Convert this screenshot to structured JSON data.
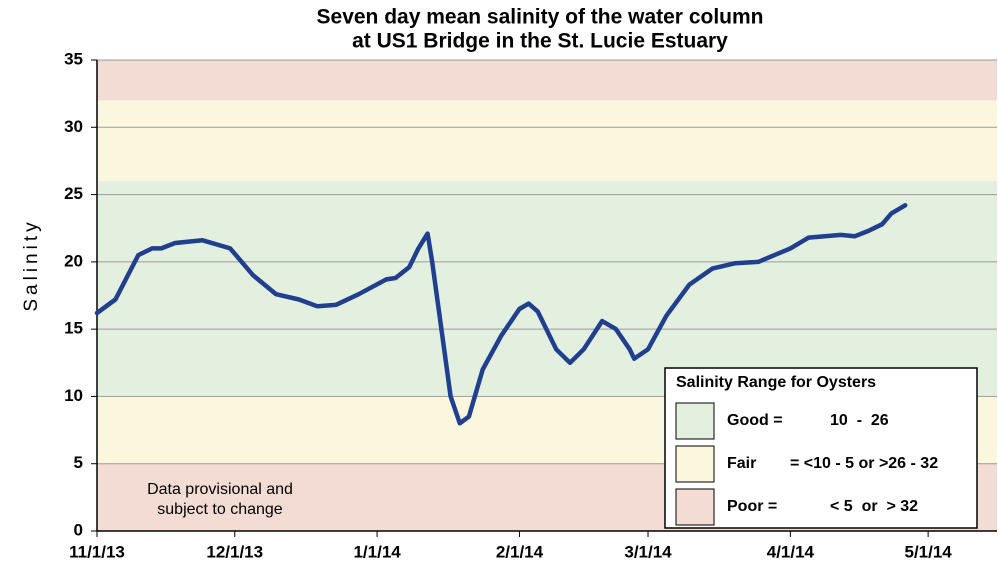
{
  "chart_data": {
    "type": "line",
    "title": [
      "Seven day mean salinity of the water column",
      "at US1 Bridge in the St. Lucie Estuary"
    ],
    "y_label": "Salinity",
    "annotation": [
      "Data provisional and",
      "subject to change"
    ],
    "xlim": [
      "2013-11-01",
      "2014-05-16"
    ],
    "xticks": [
      {
        "value": "2013-11-01",
        "label": "11/1/13"
      },
      {
        "value": "2013-12-01",
        "label": "12/1/13"
      },
      {
        "value": "2014-01-01",
        "label": "1/1/14"
      },
      {
        "value": "2014-02-01",
        "label": "2/1/14"
      },
      {
        "value": "2014-03-01",
        "label": "3/1/14"
      },
      {
        "value": "2014-04-01",
        "label": "4/1/14"
      },
      {
        "value": "2014-05-01",
        "label": "5/1/14"
      }
    ],
    "ylim": [
      0,
      35
    ],
    "yticks": [
      0,
      5,
      10,
      15,
      20,
      25,
      30,
      35
    ],
    "grid": true,
    "bands": [
      {
        "range": [
          0,
          5
        ],
        "color": "#f3dcd3"
      },
      {
        "range": [
          5,
          10
        ],
        "color": "#fbf7df"
      },
      {
        "range": [
          10,
          26
        ],
        "color": "#e4f0df"
      },
      {
        "range": [
          26,
          32
        ],
        "color": "#fbf7df"
      },
      {
        "range": [
          32,
          35
        ],
        "color": "#f3dcd3"
      }
    ],
    "legend": {
      "title": "Salinity Range for Oysters",
      "items": [
        {
          "label": "Good =",
          "range_label": "10  -  26",
          "color": "#e4f0df"
        },
        {
          "label": "Fair",
          "range_label": "= <10 - 5 or >26 - 32",
          "color": "#fbf7df"
        },
        {
          "label": "Poor  =",
          "range_label": "< 5  or  > 32",
          "color": "#f3dcd3"
        }
      ]
    },
    "series": [
      {
        "name": "Salinity",
        "color": "#203f8e",
        "x": [
          "2013-11-01",
          "2013-11-05",
          "2013-11-10",
          "2013-11-13",
          "2013-11-15",
          "2013-11-18",
          "2013-11-24",
          "2013-11-30",
          "2013-12-05",
          "2013-12-10",
          "2013-12-15",
          "2013-12-19",
          "2013-12-23",
          "2013-12-28",
          "2014-01-03",
          "2014-01-05",
          "2014-01-08",
          "2014-01-10",
          "2014-01-12",
          "2014-01-13",
          "2014-01-15",
          "2014-01-17",
          "2014-01-19",
          "2014-01-21",
          "2014-01-24",
          "2014-01-28",
          "2014-02-01",
          "2014-02-03",
          "2014-02-05",
          "2014-02-09",
          "2014-02-12",
          "2014-02-15",
          "2014-02-19",
          "2014-02-22",
          "2014-02-25",
          "2014-02-26",
          "2014-03-01",
          "2014-03-05",
          "2014-03-10",
          "2014-03-15",
          "2014-03-20",
          "2014-03-25",
          "2014-04-01",
          "2014-04-05",
          "2014-04-12",
          "2014-04-15",
          "2014-04-18",
          "2014-04-21",
          "2014-04-23",
          "2014-04-26"
        ],
        "values": [
          16.2,
          17.2,
          20.5,
          21.0,
          21.0,
          21.4,
          21.6,
          21.0,
          19.0,
          17.6,
          17.2,
          16.7,
          16.8,
          17.6,
          18.7,
          18.8,
          19.6,
          21.0,
          22.1,
          20.0,
          15.0,
          10.0,
          8.0,
          8.5,
          12.0,
          14.5,
          16.5,
          16.9,
          16.3,
          13.5,
          12.5,
          13.5,
          15.6,
          15.0,
          13.5,
          12.8,
          13.5,
          16.0,
          18.3,
          19.5,
          19.9,
          20.0,
          21.0,
          21.8,
          22.0,
          21.9,
          22.3,
          22.8,
          23.6,
          24.2
        ]
      }
    ]
  }
}
